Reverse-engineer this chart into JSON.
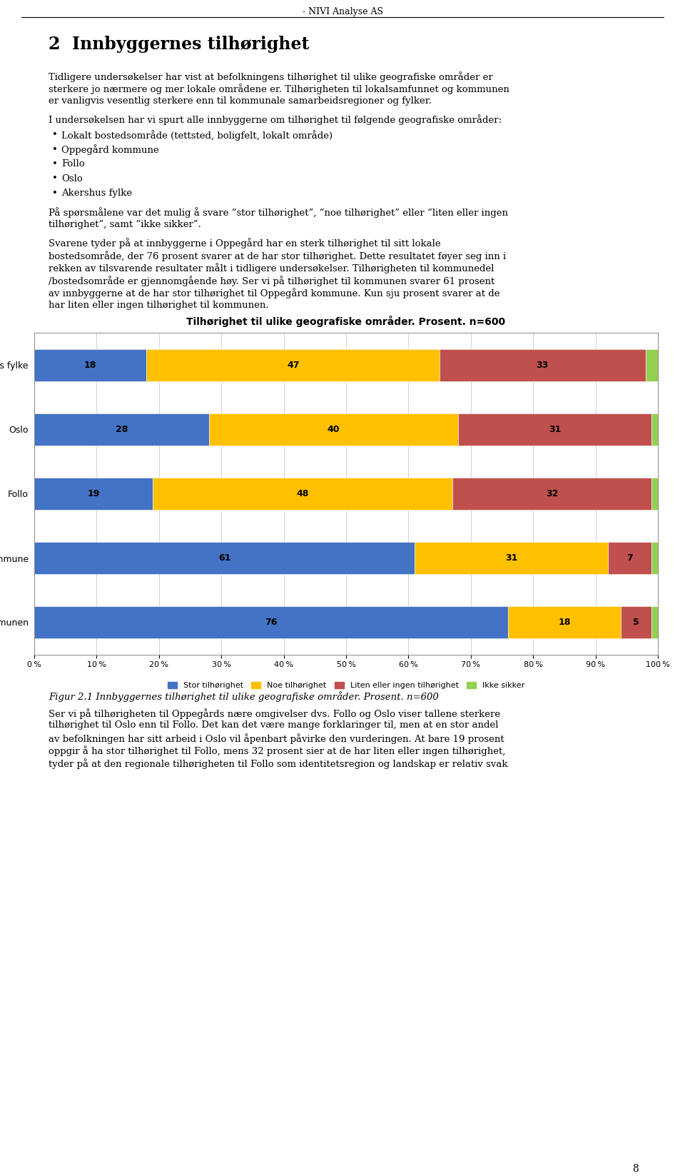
{
  "page_title": "- NIVI Analyse AS",
  "section_number": "2",
  "section_title": "Innbyggernes tilhørighet",
  "para1": "Tidligere undersøkelser har vist at befolkningens tilhørighet til ulike geografiske områder er sterkere jo nærmere og mer lokale områdene er. Tilhørigheten til lokalsamfunnet og kommunen er vanligvis vesentlig sterkere enn til kommunale samarbeidsregioner og fylker.",
  "para2": "I undersøkelsen har vi spurt alle innbyggerne om tilhørighet til følgende geografiske områder:",
  "bullets": [
    "Lokalt bostedsområde (tettsted, boligfelt, lokalt område)",
    "Oppegård kommune",
    "Follo",
    "Oslo",
    "Akershus fylke"
  ],
  "para3": "På spørsmålene var det mulig å svare “stor tilhørighet”, “noe tilhørighet” eller “liten eller ingen tilhørighet”, samt “ikke sikker”.",
  "para4_lines": [
    "Svarene tyder på at innbyggerne i Oppegård har en sterk tilhørighet til sitt lokale",
    "bostedsområde, der 76 prosent svarer at de har stor tilhørighet. Dette resultatet føyer seg inn i",
    "rekken av tilsvarende resultater målt i tidligere undersøkelser. Tilhørigheten til kommunedel",
    "/bostedsområde er gjennomgående høy. Ser vi på tilhørighet til kommunen svarer 61 prosent",
    "av innbyggerne at de har stor tilhørighet til Oppegård kommune. Kun sju prosent svarer at de",
    "har liten eller ingen tilhørighet til kommunen."
  ],
  "chart_title": "Tilhørighet til ulike geografiske områder. Prosent. n=600",
  "categories": [
    "Akershus fylke",
    "Oslo",
    "Follo",
    "Oppegård kommune",
    "Del av kommunen"
  ],
  "data": {
    "Stor tilhørighet": [
      18,
      28,
      19,
      61,
      76
    ],
    "Noe tilhørighet": [
      47,
      40,
      48,
      31,
      18
    ],
    "Liten eller ingen tilhørighet": [
      33,
      31,
      32,
      7,
      5
    ],
    "Ikke sikker": [
      2,
      1,
      1,
      1,
      1
    ]
  },
  "colors": {
    "Stor tilhørighet": "#4472C4",
    "Noe tilhørighet": "#FFC000",
    "Liten eller ingen tilhørighet": "#C0504D",
    "Ikke sikker": "#92D050"
  },
  "fig_caption": "Figur 2.1 Innbyggernes tilhørighet til ulike geografiske områder. Prosent. n=600",
  "para5_lines": [
    "Ser vi på tilhørigheten til Oppegårds nære omgivelser dvs. Follo og Oslo viser tallene sterkere",
    "tilhørighet til Oslo enn til Follo. Det kan det være mange forklaringer til, men at en stor andel",
    "av befolkningen har sitt arbeid i Oslo vil åpenbart påvirke den vurderingen. At bare 19 prosent",
    "oppgir å ha stor tilhørighet til Follo, mens 32 prosent sier at de har liten eller ingen tilhørighet,",
    "tyder på at den regionale tilhørigheten til Follo som identitetsregion og landskap er relativ svak"
  ],
  "page_number": "8",
  "bg_color": "#ffffff",
  "text_color": "#000000",
  "header_fontsize": 9,
  "body_fontsize": 9.5,
  "section_fontsize": 17,
  "chart_label_fontsize": 9,
  "legend_fontsize": 8,
  "xtick_fontsize": 8,
  "ytick_fontsize": 9
}
